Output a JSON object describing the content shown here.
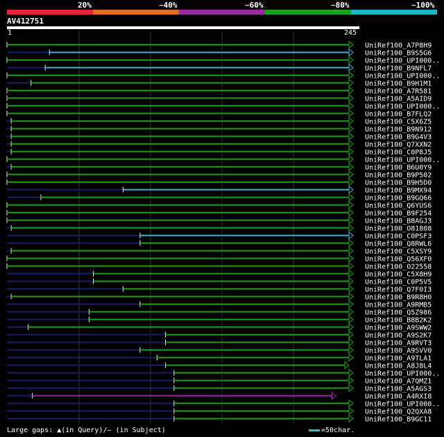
{
  "header": {
    "percent_labels": [
      "20%",
      "~40%",
      "~60%",
      "~80%",
      "~100%"
    ],
    "segment_colors": [
      "#e8203a",
      "#e07020",
      "#9a2aa0",
      "#1aa21a",
      "#1ab8c4"
    ],
    "query_id": "AV412751",
    "ruler_start": "1",
    "ruler_end": "245"
  },
  "colors": {
    "80": "#1aa21a",
    "100": "#3ab7d3",
    "60": "#9a2aa0",
    "unaligned": "#1c1c6c"
  },
  "hits": [
    {
      "label": "UniRef100_A7P8H9",
      "start": 1,
      "end": 245,
      "color": "80"
    },
    {
      "label": "UniRef100_B9S5G6",
      "start": 31,
      "end": 245,
      "color": "100"
    },
    {
      "label": "UniRef100_UPI000..",
      "start": 1,
      "end": 245,
      "color": "80"
    },
    {
      "label": "UniRef100_B9NFL7",
      "start": 28,
      "end": 245,
      "color": "100"
    },
    {
      "label": "UniRef100_UPI000..",
      "start": 1,
      "end": 245,
      "color": "80"
    },
    {
      "label": "UniRef100_B9H1M1",
      "start": 18,
      "end": 245,
      "color": "80"
    },
    {
      "label": "UniRef100_A7R581",
      "start": 1,
      "end": 245,
      "color": "80"
    },
    {
      "label": "UniRef100_A5AID9",
      "start": 1,
      "end": 245,
      "color": "80"
    },
    {
      "label": "UniRef100_UPI000..",
      "start": 1,
      "end": 245,
      "color": "80"
    },
    {
      "label": "UniRef100_B7FLQ2",
      "start": 1,
      "end": 245,
      "color": "80"
    },
    {
      "label": "UniRef100_C5X6Z5",
      "start": 4,
      "end": 245,
      "color": "80"
    },
    {
      "label": "UniRef100_B9N912",
      "start": 4,
      "end": 245,
      "color": "80"
    },
    {
      "label": "UniRef100_B9G4V3",
      "start": 4,
      "end": 245,
      "color": "80"
    },
    {
      "label": "UniRef100_Q7XXN2",
      "start": 4,
      "end": 245,
      "color": "80"
    },
    {
      "label": "UniRef100_C0P8J5",
      "start": 4,
      "end": 245,
      "color": "80"
    },
    {
      "label": "UniRef100_UPI000..",
      "start": 1,
      "end": 245,
      "color": "80"
    },
    {
      "label": "UniRef100_B6U0Y9",
      "start": 4,
      "end": 245,
      "color": "80"
    },
    {
      "label": "UniRef100_B9P502",
      "start": 1,
      "end": 245,
      "color": "80"
    },
    {
      "label": "UniRef100_B9H5D0",
      "start": 1,
      "end": 245,
      "color": "80"
    },
    {
      "label": "UniRef100_B9MX94",
      "start": 83,
      "end": 245,
      "color": "100"
    },
    {
      "label": "UniRef100_B9GQ66",
      "start": 25,
      "end": 245,
      "color": "80"
    },
    {
      "label": "UniRef100_Q6YUS6",
      "start": 1,
      "end": 245,
      "color": "80"
    },
    {
      "label": "UniRef100_B9F254",
      "start": 1,
      "end": 245,
      "color": "80"
    },
    {
      "label": "UniRef100_B8AGJ3",
      "start": 1,
      "end": 245,
      "color": "80"
    },
    {
      "label": "UniRef100_O81808",
      "start": 4,
      "end": 245,
      "color": "80"
    },
    {
      "label": "UniRef100_C0PSF3",
      "start": 95,
      "end": 245,
      "color": "100"
    },
    {
      "label": "UniRef100_Q8RWL6",
      "start": 95,
      "end": 245,
      "color": "80"
    },
    {
      "label": "UniRef100_C5XSY9",
      "start": 4,
      "end": 245,
      "color": "80"
    },
    {
      "label": "UniRef100_Q56XF0",
      "start": 1,
      "end": 245,
      "color": "80"
    },
    {
      "label": "UniRef100_O22558",
      "start": 1,
      "end": 245,
      "color": "80"
    },
    {
      "label": "UniRef100_C5X8H9",
      "start": 62,
      "end": 245,
      "color": "80"
    },
    {
      "label": "UniRef100_C0P5V5",
      "start": 62,
      "end": 245,
      "color": "80"
    },
    {
      "label": "UniRef100_Q7F0I3",
      "start": 83,
      "end": 245,
      "color": "80"
    },
    {
      "label": "UniRef100_B9R8H0",
      "start": 4,
      "end": 245,
      "color": "80"
    },
    {
      "label": "UniRef100_A9RMB5",
      "start": 95,
      "end": 245,
      "color": "80"
    },
    {
      "label": "UniRef100_Q5Z986",
      "start": 59,
      "end": 245,
      "color": "80"
    },
    {
      "label": "UniRef100_B8B2K2",
      "start": 59,
      "end": 245,
      "color": "80"
    },
    {
      "label": "UniRef100_A9SWW2",
      "start": 16,
      "end": 245,
      "color": "80"
    },
    {
      "label": "UniRef100_A9S2K7",
      "start": 113,
      "end": 245,
      "color": "80"
    },
    {
      "label": "UniRef100_A9RVT3",
      "start": 113,
      "end": 245,
      "color": "80"
    },
    {
      "label": "UniRef100_A9SVV0",
      "start": 95,
      "end": 245,
      "color": "80"
    },
    {
      "label": "UniRef100_A9TLA1",
      "start": 107,
      "end": 245,
      "color": "80"
    },
    {
      "label": "UniRef100_A8J8L4",
      "start": 113,
      "end": 242,
      "color": "80"
    },
    {
      "label": "UniRef100_UPI000..",
      "start": 119,
      "end": 245,
      "color": "80"
    },
    {
      "label": "UniRef100_A7QMZ1",
      "start": 119,
      "end": 245,
      "color": "80"
    },
    {
      "label": "UniRef100_A5AGS3",
      "start": 119,
      "end": 245,
      "color": "80"
    },
    {
      "label": "UniRef100_A4RXI8",
      "start": 19,
      "end": 233,
      "color": "60"
    },
    {
      "label": "UniRef100_UPI000..",
      "start": 119,
      "end": 245,
      "color": "80"
    },
    {
      "label": "UniRef100_Q2QXA8",
      "start": 119,
      "end": 245,
      "color": "80"
    },
    {
      "label": "UniRef100_B9GC11",
      "start": 119,
      "end": 245,
      "color": "80"
    }
  ],
  "footer": {
    "gaps_text": "Large gaps: ▲(in Query)/– (in Subject)",
    "scale_text": "=50char."
  }
}
